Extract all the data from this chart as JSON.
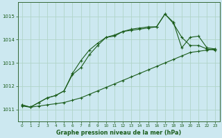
{
  "background_color": "#cce8f0",
  "grid_color": "#b0d4c8",
  "line_color": "#1a5c1a",
  "title": "Graphe pression niveau de la mer (hPa)",
  "xlim": [
    -0.5,
    23.5
  ],
  "ylim": [
    1010.5,
    1015.6
  ],
  "yticks": [
    1011,
    1012,
    1013,
    1014,
    1015
  ],
  "xticks": [
    0,
    1,
    2,
    3,
    4,
    5,
    6,
    7,
    8,
    9,
    10,
    11,
    12,
    13,
    14,
    15,
    16,
    17,
    18,
    19,
    20,
    21,
    22,
    23
  ],
  "series1_x": [
    0,
    1,
    2,
    3,
    4,
    5,
    6,
    7,
    8,
    9,
    10,
    11,
    12,
    13,
    14,
    15,
    16,
    17,
    18,
    19,
    20,
    21,
    22,
    23
  ],
  "series1_y": [
    1011.2,
    1011.1,
    1011.3,
    1011.5,
    1011.6,
    1011.8,
    1012.5,
    1012.8,
    1013.35,
    1013.75,
    1014.1,
    1014.15,
    1014.35,
    1014.4,
    1014.45,
    1014.5,
    1014.55,
    1015.1,
    1014.7,
    1014.1,
    1013.75,
    1013.75,
    1013.6,
    1013.55
  ],
  "series2_x": [
    0,
    1,
    2,
    3,
    4,
    5,
    6,
    7,
    8,
    9,
    10,
    11,
    12,
    13,
    14,
    15,
    16,
    17,
    18,
    19,
    20,
    21,
    22,
    23
  ],
  "series2_y": [
    1011.15,
    1011.1,
    1011.15,
    1011.2,
    1011.25,
    1011.3,
    1011.4,
    1011.5,
    1011.65,
    1011.8,
    1011.95,
    1012.1,
    1012.25,
    1012.4,
    1012.55,
    1012.7,
    1012.85,
    1013.0,
    1013.15,
    1013.3,
    1013.45,
    1013.5,
    1013.55,
    1013.6
  ],
  "series3_x": [
    0,
    1,
    2,
    3,
    4,
    5,
    6,
    7,
    8,
    9,
    10,
    11,
    12,
    13,
    14,
    15,
    16,
    17,
    18,
    19,
    20,
    21,
    22,
    23
  ],
  "series3_y": [
    1011.2,
    1011.1,
    1011.3,
    1011.5,
    1011.6,
    1011.8,
    1012.55,
    1013.1,
    1013.55,
    1013.85,
    1014.1,
    1014.2,
    1014.35,
    1014.45,
    1014.5,
    1014.55,
    1014.55,
    1015.1,
    1014.75,
    1013.65,
    1014.1,
    1014.15,
    1013.65,
    1013.6
  ]
}
